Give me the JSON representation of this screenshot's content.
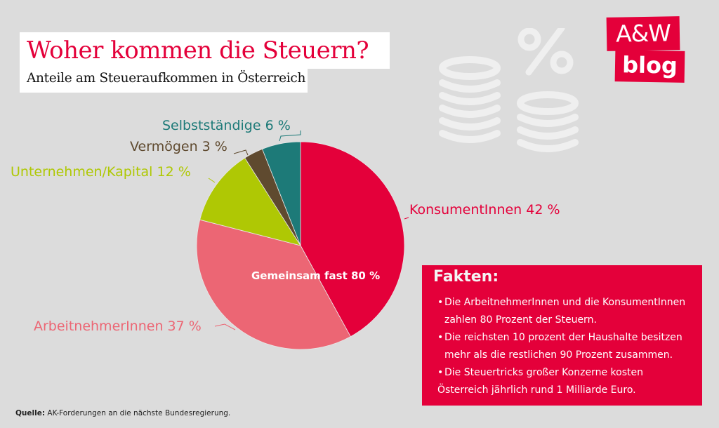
{
  "header": {
    "title": "Woher kommen die Steuern?",
    "subtitle": "Anteile am Steueraufkommen in Österreich"
  },
  "logo": {
    "line1": "A&W",
    "line2": "blog"
  },
  "decoration": {
    "icons": [
      "coins-stack-icon",
      "percent-icon"
    ]
  },
  "chart_data": {
    "type": "pie",
    "title": "Woher kommen die Steuern?",
    "subtitle": "Anteile am Steueraufkommen in Österreich",
    "start": "top",
    "direction": "clockwise",
    "slices": [
      {
        "label": "KonsumentInnen",
        "value": 42,
        "display": "KonsumentInnen 42 %",
        "color": "#e4003a"
      },
      {
        "label": "ArbeitnehmerInnen",
        "value": 37,
        "display": "ArbeitnehmerInnen 37 %",
        "color": "#ec6674"
      },
      {
        "label": "Unternehmen/Kapital",
        "value": 12,
        "display": "Unternehmen/Kapital 12 %",
        "color": "#afc804"
      },
      {
        "label": "Vermögen",
        "value": 3,
        "display": "Vermögen 3 %",
        "color": "#5f4a2f"
      },
      {
        "label": "Selbstständige",
        "value": 6,
        "display": "Selbstständige 6 %",
        "color": "#1d7a78"
      }
    ],
    "annotation": "Gemeinsam fast 80 %"
  },
  "facts": {
    "title": "Fakten:",
    "items": [
      {
        "line1": "Die ArbeitnehmerInnen und die KonsumentInnen",
        "line2": "zahlen 80 Prozent der Steuern."
      },
      {
        "line1": "Die reichsten 10 prozent der Haushalte besitzen",
        "line2": "mehr als die restlichen 90 Prozent zusammen."
      },
      {
        "line1": "Die Steuertricks großer Konzerne kosten",
        "line2": "Österreich jährlich rund 1 Milliarde Euro."
      }
    ]
  },
  "source": {
    "label": "Quelle:",
    "text": "AK-Forderungen an die nächste Bundesregierung."
  }
}
